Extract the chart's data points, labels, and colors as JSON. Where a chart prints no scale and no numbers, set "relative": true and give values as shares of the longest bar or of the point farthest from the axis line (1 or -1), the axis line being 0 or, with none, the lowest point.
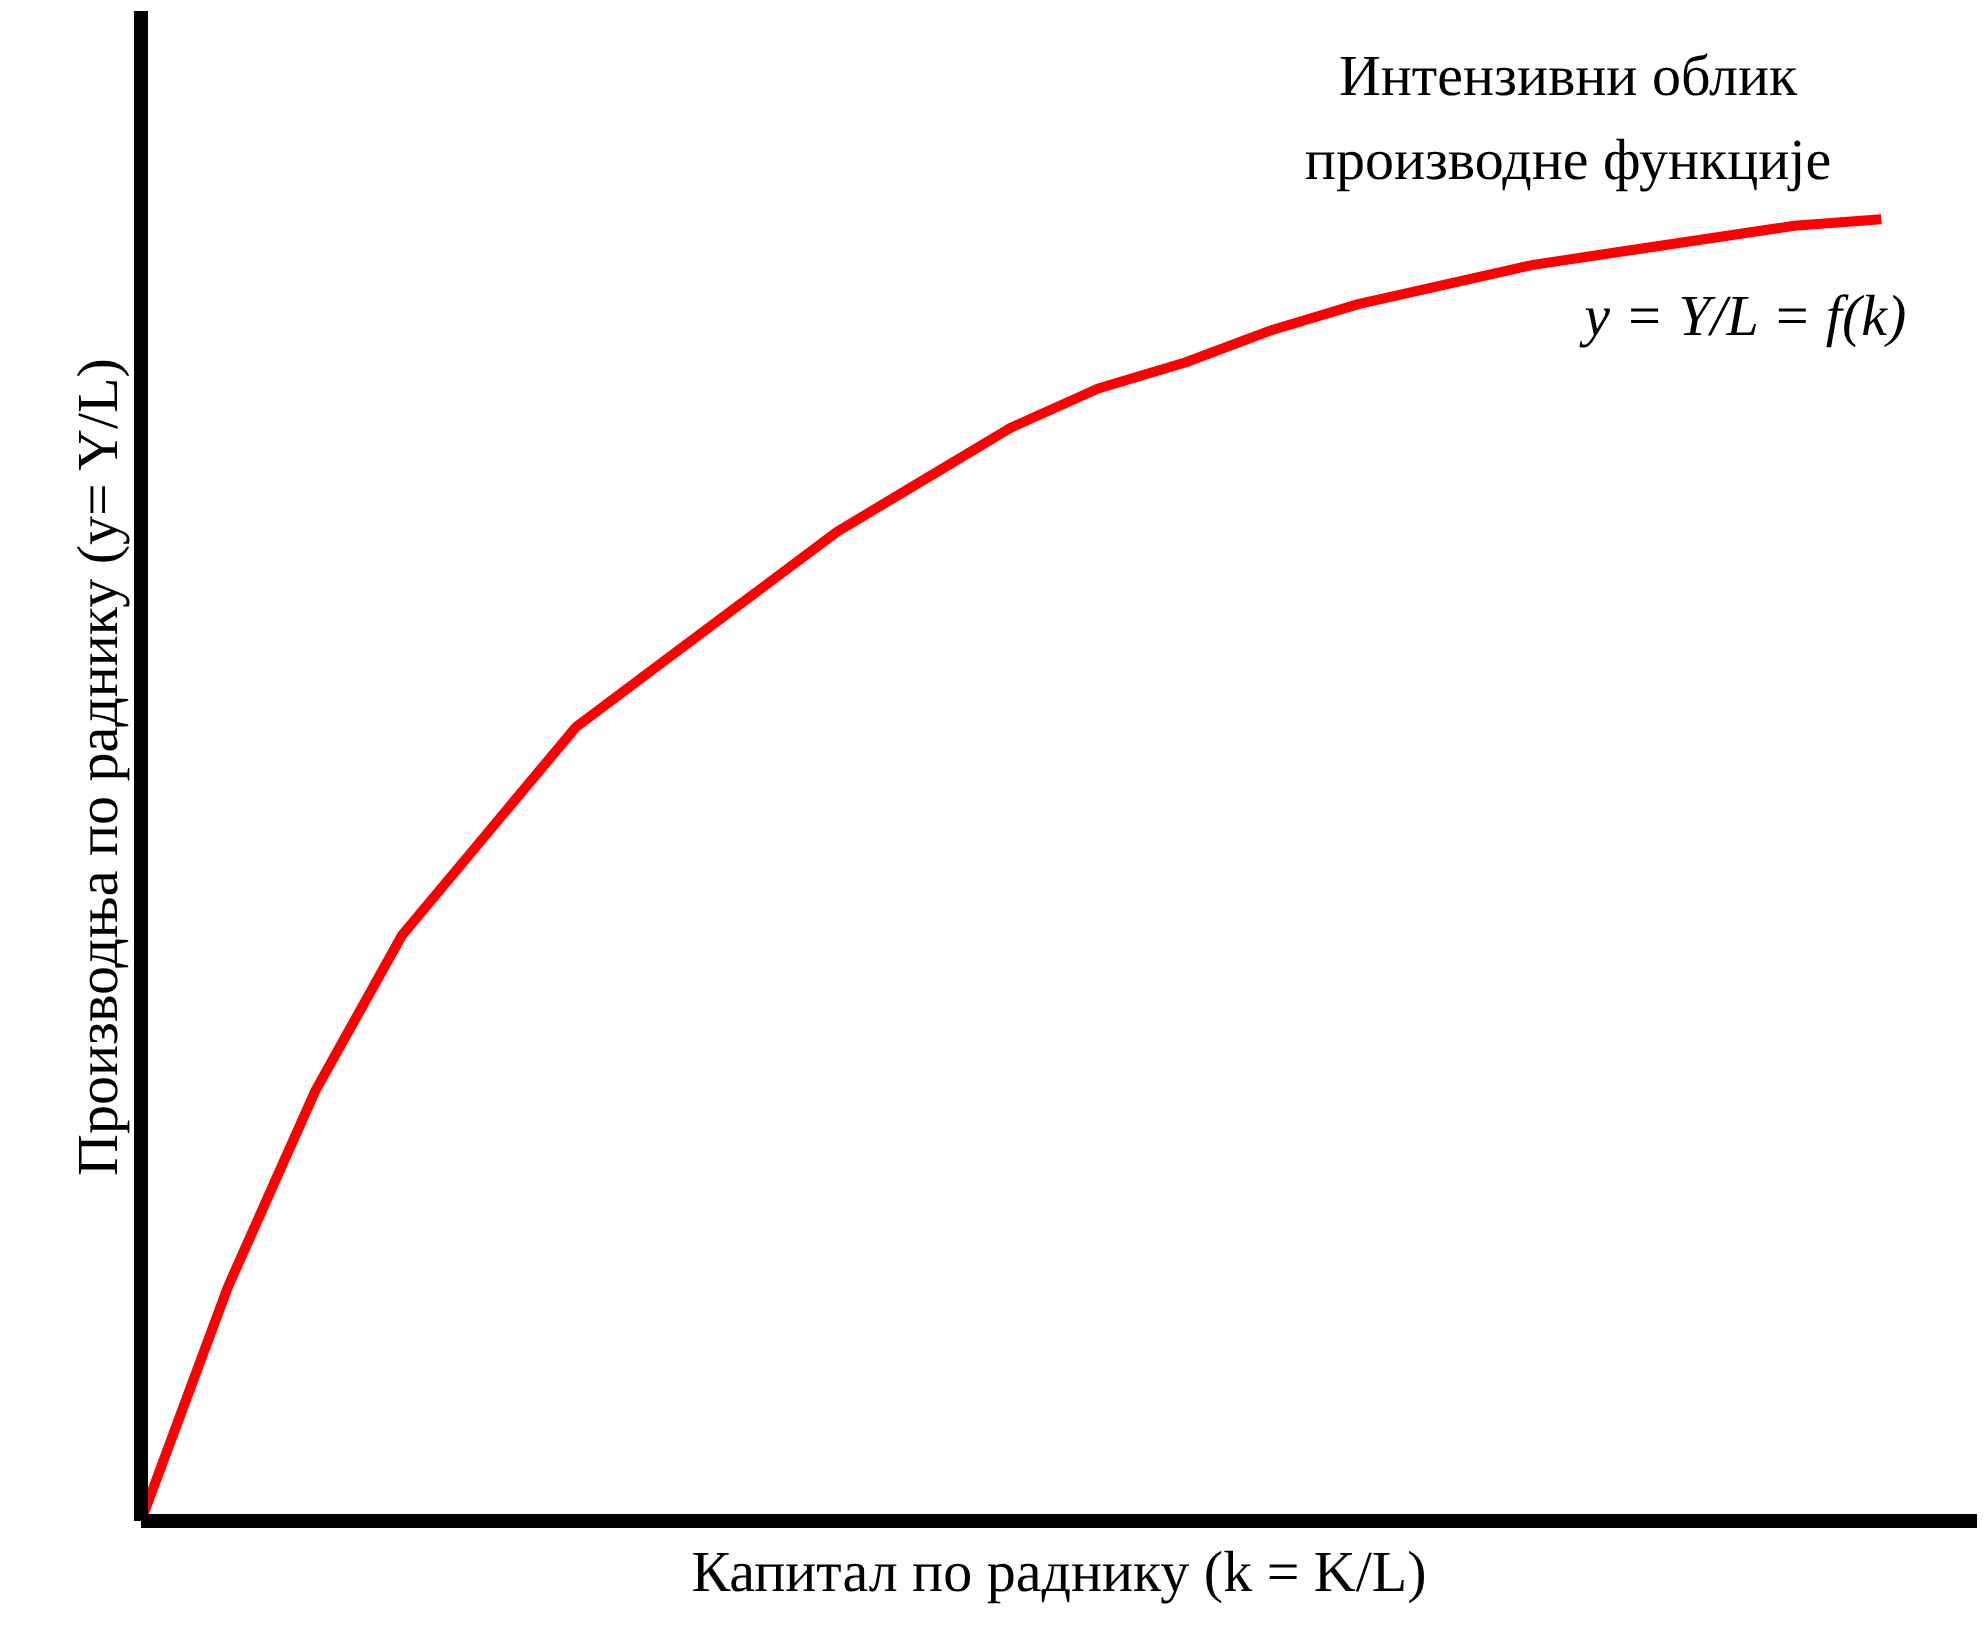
{
  "chart_data": {
    "type": "line",
    "relative": true,
    "xlabel": "Капитал по раднику (k = K/L)",
    "ylabel": "Производња по раднику (y= Y/L)",
    "annotations": [
      "Интензивни облик\nпроизводне функције",
      "y = Y/L = f(k)"
    ],
    "categories": [
      null,
      null,
      null,
      null,
      null,
      null,
      null,
      null,
      null,
      null,
      null,
      null,
      null,
      null,
      null,
      null,
      null,
      null,
      null,
      null,
      null
    ],
    "series": [
      {
        "color": "#ff0000",
        "values": [
          0,
          0.18,
          0.33,
          0.45,
          0.53,
          0.61,
          0.66,
          0.71,
          0.76,
          0.8,
          0.84,
          0.87,
          0.89,
          0.915,
          0.935,
          0.95,
          0.965,
          0.975,
          0.985,
          0.995,
          1
        ]
      }
    ],
    "grid": false,
    "marker": "none",
    "line_style": "solid"
  }
}
